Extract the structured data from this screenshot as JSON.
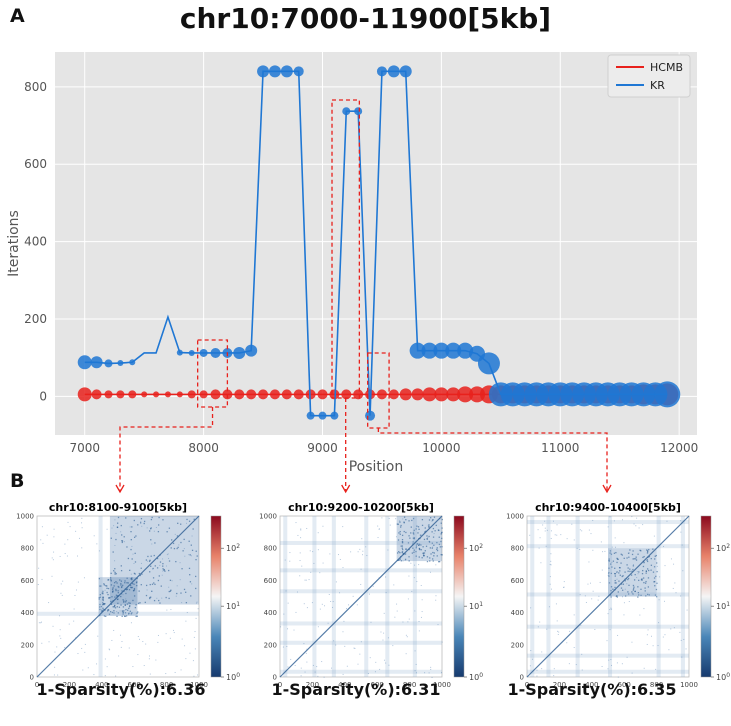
{
  "panel_a_label": "A",
  "panel_b_label": "B",
  "chart_data": [
    {
      "type": "line",
      "title": "chr10:7000-11900[5kb]",
      "xlabel": "Position",
      "ylabel": "Iterations",
      "xlim": [
        6750,
        12150
      ],
      "ylim": [
        -100,
        890
      ],
      "xticks": [
        7000,
        8000,
        9000,
        10000,
        11000,
        12000
      ],
      "yticks": [
        0,
        200,
        400,
        600,
        800
      ],
      "grid": true,
      "legend_position": "top-right",
      "x": [
        7000,
        7100,
        7200,
        7300,
        7400,
        7500,
        7600,
        7700,
        7800,
        7900,
        8000,
        8100,
        8200,
        8300,
        8400,
        8500,
        8600,
        8700,
        8800,
        8900,
        9000,
        9100,
        9200,
        9300,
        9400,
        9500,
        9600,
        9700,
        9800,
        9900,
        10000,
        10100,
        10200,
        10300,
        10400,
        10500,
        10600,
        10700,
        10800,
        10900,
        11000,
        11100,
        11200,
        11300,
        11400,
        11500,
        11600,
        11700,
        11800,
        11900
      ],
      "series": [
        {
          "name": "HCMB",
          "color": "#e8211c",
          "values": [
            5,
            5,
            5,
            5,
            5,
            5,
            5,
            5,
            5,
            5,
            5,
            5,
            5,
            5,
            5,
            5,
            5,
            5,
            5,
            5,
            5,
            5,
            5,
            5,
            5,
            5,
            5,
            5,
            5,
            5,
            5,
            5,
            5,
            5,
            5,
            5,
            5,
            5,
            5,
            5,
            5,
            5,
            5,
            5,
            5,
            5,
            5,
            5,
            5,
            5
          ],
          "sizes": [
            7,
            5,
            4,
            4,
            4,
            3,
            3,
            3,
            3,
            4,
            4,
            5,
            5,
            5,
            5,
            5,
            5,
            5,
            5,
            5,
            5,
            5,
            5,
            5,
            5,
            5,
            5,
            6,
            6,
            7,
            7,
            7,
            8,
            8,
            9,
            9,
            9,
            9,
            9,
            9,
            9,
            9,
            9,
            9,
            9,
            9,
            9,
            10,
            10,
            11
          ]
        },
        {
          "name": "KR",
          "color": "#1f77d4",
          "values": [
            88,
            88,
            85,
            86,
            88,
            112,
            112,
            205,
            113,
            112,
            112,
            112,
            112,
            112,
            118,
            840,
            840,
            840,
            840,
            -50,
            -50,
            -50,
            737,
            737,
            -50,
            840,
            840,
            840,
            118,
            118,
            118,
            118,
            118,
            110,
            85,
            5,
            5,
            5,
            5,
            5,
            5,
            5,
            5,
            5,
            5,
            5,
            5,
            5,
            5,
            5
          ],
          "sizes": [
            7,
            6,
            4,
            3,
            3,
            0,
            0,
            0,
            3,
            3,
            4,
            5,
            5,
            6,
            6,
            6,
            6,
            6,
            5,
            4,
            4,
            4,
            4,
            4,
            5,
            5,
            6,
            6,
            8,
            8,
            8,
            8,
            8,
            8,
            11,
            12,
            12,
            12,
            12,
            12,
            12,
            12,
            12,
            12,
            12,
            12,
            12,
            12,
            12,
            13
          ]
        }
      ],
      "highlight_boxes_x": [
        [
          7950,
          8200
        ],
        [
          9080,
          9310
        ],
        [
          9380,
          9560
        ]
      ]
    },
    {
      "type": "heatmap",
      "title": "chr10:8100-9100[5kb]",
      "xlim": [
        0,
        1000
      ],
      "ylim": [
        0,
        1000
      ],
      "xticks": [
        0,
        200,
        400,
        600,
        800,
        1000
      ],
      "yticks": [
        0,
        200,
        400,
        600,
        800,
        1000
      ],
      "colorbar_ticks": [
        "10^0",
        "10^1",
        "10^2"
      ],
      "caption": "1-Sparsity(%):6.36"
    },
    {
      "type": "heatmap",
      "title": "chr10:9200-10200[5kb]",
      "xlim": [
        0,
        1000
      ],
      "ylim": [
        0,
        1000
      ],
      "xticks": [
        0,
        200,
        400,
        600,
        800,
        1000
      ],
      "yticks": [
        0,
        200,
        400,
        600,
        800,
        1000
      ],
      "colorbar_ticks": [
        "10^0",
        "10^1",
        "10^2"
      ],
      "caption": "1-Sparsity(%):6.31"
    },
    {
      "type": "heatmap",
      "title": "chr10:9400-10400[5kb]",
      "xlim": [
        0,
        1000
      ],
      "ylim": [
        0,
        1000
      ],
      "xticks": [
        0,
        200,
        400,
        600,
        800,
        1000
      ],
      "yticks": [
        0,
        200,
        400,
        600,
        800,
        1000
      ],
      "colorbar_ticks": [
        "10^0",
        "10^1",
        "10^2"
      ],
      "caption": "1-Sparsity(%):6.35"
    }
  ]
}
